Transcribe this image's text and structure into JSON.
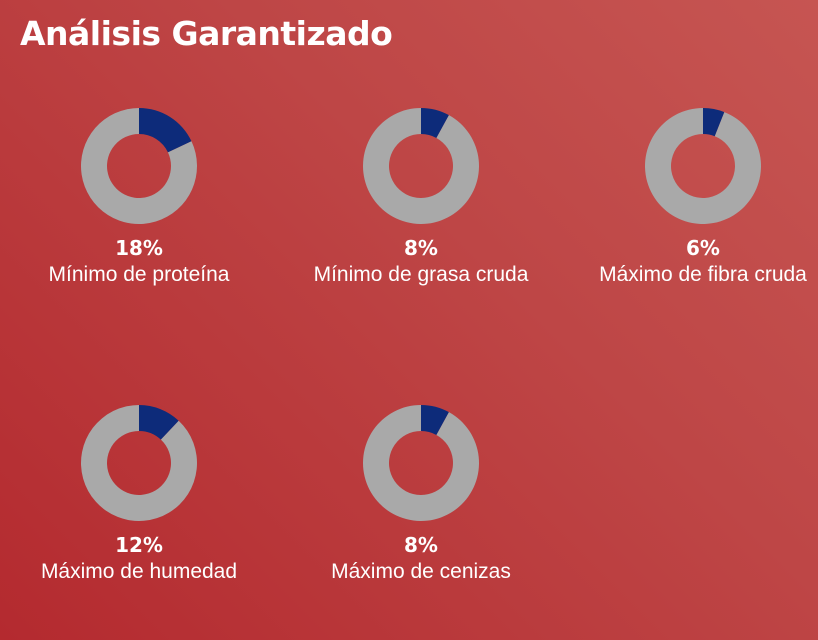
{
  "title": "Análisis Garantizado",
  "colors": {
    "filled": "#0d2b7a",
    "remainder": "#a9a9a9",
    "background": "#bd3d3f"
  },
  "chart_data": [
    {
      "type": "pie",
      "value_label": "18%",
      "label": "Mínimo de proteína",
      "values": [
        18,
        82
      ]
    },
    {
      "type": "pie",
      "value_label": "8%",
      "label": "Mínimo de grasa cruda",
      "values": [
        8,
        92
      ]
    },
    {
      "type": "pie",
      "value_label": "6%",
      "label": "Máximo de fibra cruda",
      "values": [
        6,
        94
      ]
    },
    {
      "type": "pie",
      "value_label": "12%",
      "label": "Máximo de humedad",
      "values": [
        12,
        88
      ]
    },
    {
      "type": "pie",
      "value_label": "8%",
      "label": "Máximo de cenizas",
      "values": [
        8,
        92
      ]
    }
  ]
}
